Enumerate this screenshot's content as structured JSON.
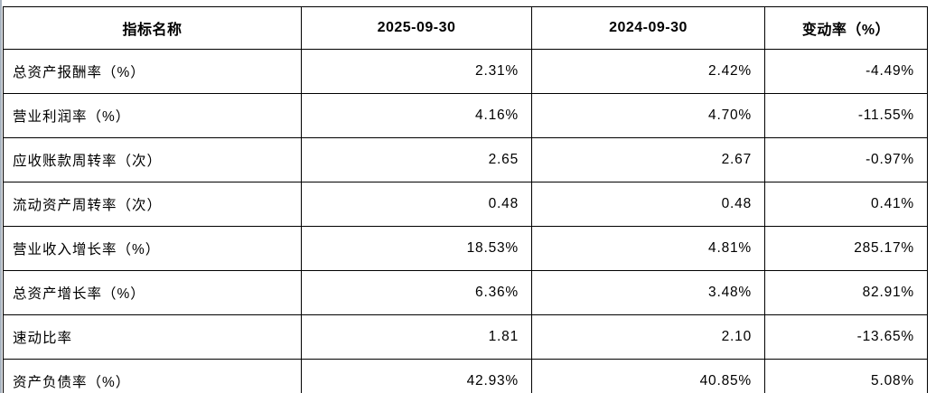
{
  "table": {
    "columns": [
      {
        "key": "name",
        "label": "指标名称"
      },
      {
        "key": "v2025",
        "label": "2025-09-30"
      },
      {
        "key": "v2024",
        "label": "2024-09-30"
      },
      {
        "key": "change",
        "label": "变动率（%）"
      }
    ],
    "rows": [
      {
        "name": "总资产报酬率（%）",
        "v2025": "2.31%",
        "v2024": "2.42%",
        "change": "-4.49%"
      },
      {
        "name": "营业利润率（%）",
        "v2025": "4.16%",
        "v2024": "4.70%",
        "change": "-11.55%"
      },
      {
        "name": "应收账款周转率（次）",
        "v2025": "2.65",
        "v2024": "2.67",
        "change": "-0.97%"
      },
      {
        "name": "流动资产周转率（次）",
        "v2025": "0.48",
        "v2024": "0.48",
        "change": "0.41%"
      },
      {
        "name": "营业收入增长率（%）",
        "v2025": "18.53%",
        "v2024": "4.81%",
        "change": "285.17%"
      },
      {
        "name": "总资产增长率（%）",
        "v2025": "6.36%",
        "v2024": "3.48%",
        "change": "82.91%"
      },
      {
        "name": "速动比率",
        "v2025": "1.81",
        "v2024": "2.10",
        "change": "-13.65%"
      },
      {
        "name": "资产负债率（%）",
        "v2025": "42.93%",
        "v2024": "40.85%",
        "change": "5.08%"
      }
    ],
    "colors": {
      "border": "#000000",
      "text": "#000000",
      "background": "#ffffff",
      "page_edge": "#a9b4c0"
    }
  }
}
